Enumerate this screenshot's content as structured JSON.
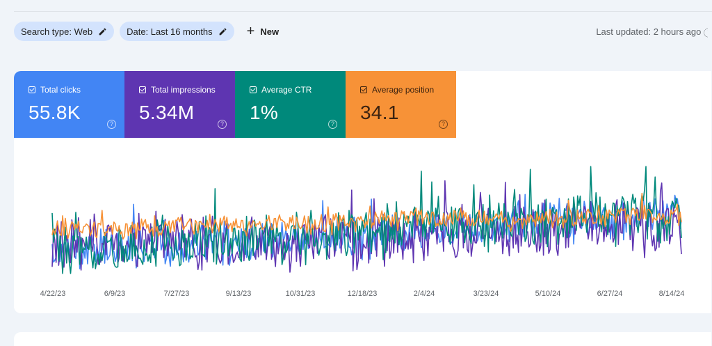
{
  "filters": {
    "search_type": "Search type: Web",
    "date": "Date: Last 16 months",
    "new_label": "New"
  },
  "last_updated": "Last updated: 2 hours ago",
  "metrics": [
    {
      "label": "Total clicks",
      "value": "55.8K",
      "color": "#4285f4"
    },
    {
      "label": "Total impressions",
      "value": "5.34M",
      "color": "#5e35b1"
    },
    {
      "label": "Average CTR",
      "value": "1%",
      "color": "#00897b"
    },
    {
      "label": "Average position",
      "value": "34.1",
      "color": "#f79237"
    }
  ],
  "chart_data": {
    "type": "line",
    "x_tick_labels": [
      "4/22/23",
      "6/9/23",
      "7/27/23",
      "9/13/23",
      "10/31/23",
      "12/18/23",
      "2/4/24",
      "3/23/24",
      "5/10/24",
      "6/27/24",
      "8/14/24"
    ],
    "x_range": [
      "4/22/23",
      "8/26/24"
    ],
    "series": [
      {
        "color": "#4285f4",
        "mean_level": [
          0.22,
          0.26,
          0.28,
          0.3,
          0.32,
          0.34,
          0.4,
          0.45,
          0.5,
          0.52,
          0.58
        ],
        "volatility": 0.16,
        "seed": 11
      },
      {
        "color": "#5e35b1",
        "mean_level": [
          0.3,
          0.32,
          0.34,
          0.3,
          0.3,
          0.28,
          0.38,
          0.4,
          0.42,
          0.45,
          0.48
        ],
        "volatility": 0.22,
        "seed": 23
      },
      {
        "color": "#00897b",
        "mean_level": [
          0.2,
          0.24,
          0.28,
          0.32,
          0.34,
          0.38,
          0.44,
          0.46,
          0.48,
          0.52,
          0.54
        ],
        "volatility": 0.2,
        "seed": 37
      },
      {
        "color": "#f79237",
        "mean_level": [
          0.4,
          0.42,
          0.44,
          0.46,
          0.46,
          0.48,
          0.52,
          0.5,
          0.52,
          0.54,
          0.54
        ],
        "volatility": 0.08,
        "seed": 51
      }
    ],
    "grid": false,
    "legend": "none"
  }
}
